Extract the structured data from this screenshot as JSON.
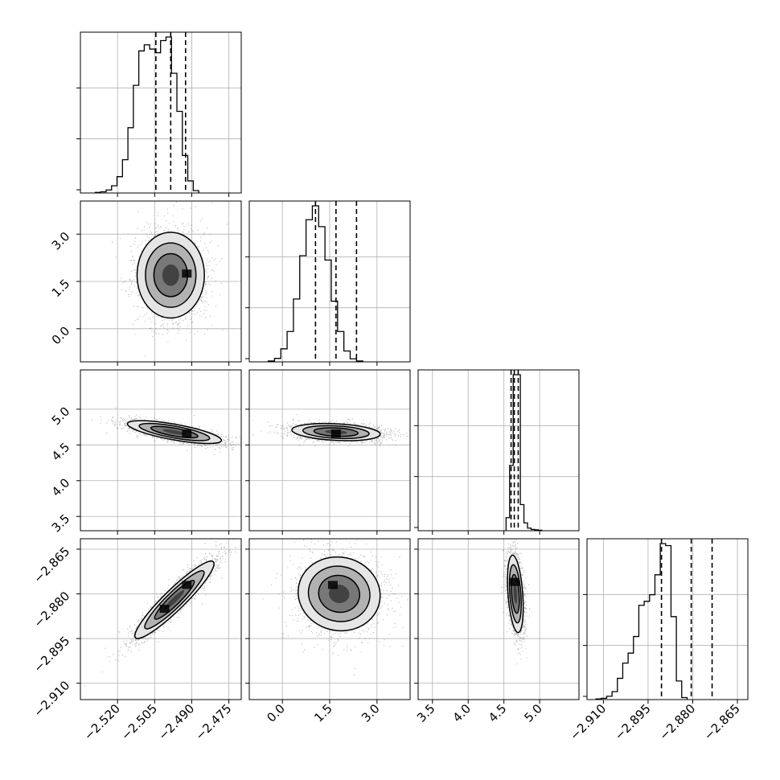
{
  "chart_data": {
    "type": "corner",
    "title": "",
    "parameters": [
      {
        "id": "p0",
        "range": [
          -2.535,
          -2.47
        ],
        "ticks": [
          "−2.520",
          "−2.505",
          "−2.490",
          "−2.475"
        ],
        "tick_values": [
          -2.52,
          -2.505,
          -2.49,
          -2.475
        ],
        "quantiles": [
          -2.5045,
          -2.4985,
          -2.4925
        ]
      },
      {
        "id": "p1",
        "range": [
          -1.05,
          4.05
        ],
        "ticks": [
          "0.0",
          "1.5",
          "3.0"
        ],
        "tick_values": [
          0.0,
          1.5,
          3.0
        ],
        "quantiles": [
          1.05,
          1.7,
          2.35
        ]
      },
      {
        "id": "p2",
        "range": [
          3.3,
          5.55
        ],
        "ticks": [
          "3.5",
          "4.0",
          "4.5",
          "5.0"
        ],
        "tick_values": [
          3.5,
          4.0,
          4.5,
          5.0
        ],
        "quantiles": [
          4.6,
          4.645,
          4.7
        ]
      },
      {
        "id": "p3",
        "range": [
          -2.9155,
          -2.8615
        ],
        "ticks": [
          "−2.910",
          "−2.895",
          "−2.880",
          "−2.865"
        ],
        "tick_values": [
          -2.91,
          -2.895,
          -2.88,
          -2.865
        ],
        "quantiles": [
          -2.8905,
          -2.8805,
          -2.8735
        ]
      }
    ],
    "histograms": {
      "p0": {
        "bin_start": -2.529,
        "bin_width": 0.0022,
        "counts": [
          1,
          2,
          5,
          12,
          27,
          55,
          108,
          178,
          235,
          245,
          238,
          232,
          252,
          258,
          198,
          135,
          62,
          20,
          4
        ]
      },
      "p1": {
        "bin_start": -0.45,
        "bin_width": 0.2,
        "counts": [
          2,
          8,
          30,
          70,
          145,
          245,
          328,
          360,
          312,
          235,
          140,
          70,
          25,
          7,
          2
        ]
      },
      "p2": {
        "bin_start": 4.53,
        "bin_width": 0.05,
        "counts": [
          30,
          150,
          358,
          358,
          60,
          18,
          6,
          3,
          2,
          1
        ]
      },
      "p3": {
        "bin_start": -2.9125,
        "bin_width": 0.0018,
        "counts": [
          1,
          2,
          5,
          12,
          32,
          55,
          70,
          95,
          142,
          148,
          158,
          188,
          235,
          232,
          125,
          28,
          3
        ]
      }
    },
    "pairs": [
      {
        "x": "p0",
        "y": "p1",
        "cx": -2.4985,
        "cy": 1.7,
        "sx": 0.0068,
        "sy": 0.68,
        "rho": 0.0,
        "modes": [
          [
            -2.492,
            1.75
          ]
        ]
      },
      {
        "x": "p0",
        "y": "p2",
        "cx": -2.497,
        "cy": 4.68,
        "sx": 0.0095,
        "sy": 0.08,
        "rho": -0.72,
        "modes": [
          [
            -2.492,
            4.66
          ]
        ]
      },
      {
        "x": "p1",
        "y": "p2",
        "cx": 1.7,
        "cy": 4.68,
        "sx": 0.7,
        "sy": 0.06,
        "rho": -0.25,
        "modes": [
          [
            1.7,
            4.66
          ]
        ]
      },
      {
        "x": "p0",
        "y": "p3",
        "cx": -2.497,
        "cy": -2.882,
        "sx": 0.008,
        "sy": 0.0065,
        "rho": 0.93,
        "modes": [
          [
            -2.492,
            -2.877
          ],
          [
            -2.501,
            -2.885
          ]
        ]
      },
      {
        "x": "p1",
        "y": "p3",
        "cx": 1.8,
        "cy": -2.88,
        "sx": 0.65,
        "sy": 0.0062,
        "rho": -0.05,
        "modes": [
          [
            1.6,
            -2.877
          ]
        ]
      },
      {
        "x": "p2",
        "y": "p3",
        "cx": 4.66,
        "cy": -2.88,
        "sx": 0.055,
        "sy": 0.0065,
        "rho": -0.35,
        "modes": [
          [
            4.65,
            -2.876
          ]
        ]
      }
    ],
    "grid": true,
    "quantile_line_style": "dashed",
    "colors": {
      "line": "#000000",
      "grid": "#b0b0b0",
      "density": "#000000"
    }
  }
}
